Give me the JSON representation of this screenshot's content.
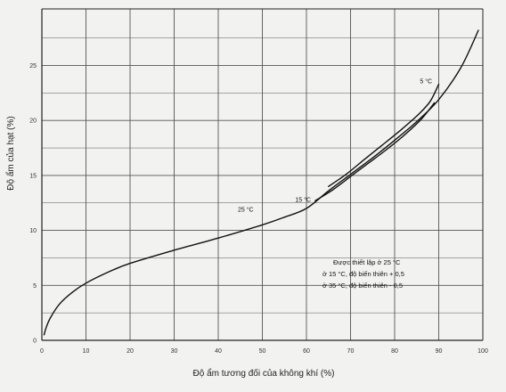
{
  "chart_data": {
    "type": "line",
    "xlabel": "Độ ẩm tương đối của không khí (%)",
    "ylabel": "Độ ẩm của hạt (%)",
    "xlim": [
      0,
      100
    ],
    "ylim": [
      0,
      28
    ],
    "x_ticks": [
      "0",
      "10",
      "20",
      "30",
      "40",
      "50",
      "60",
      "70",
      "80",
      "90",
      "100"
    ],
    "y_ticks": [
      "0",
      "5",
      "10",
      "15",
      "20",
      "25"
    ],
    "grid": true,
    "series": [
      {
        "name": "25 °C",
        "x": [
          0.5,
          1,
          2,
          4,
          7,
          10,
          15,
          20,
          30,
          40,
          50,
          55,
          60,
          65,
          70,
          75,
          80,
          85,
          90,
          95,
          99
        ],
        "y": [
          0.5,
          1.2,
          2.1,
          3.3,
          4.4,
          5.2,
          6.2,
          7.0,
          8.2,
          9.3,
          10.5,
          11.2,
          12.0,
          13.6,
          15.1,
          16.6,
          18.2,
          19.9,
          21.9,
          24.8,
          28.2
        ]
      },
      {
        "name": "15 °C",
        "x": [
          62,
          66,
          70,
          74,
          78,
          82,
          86,
          89
        ],
        "y": [
          12.7,
          13.7,
          14.9,
          16.1,
          17.3,
          18.6,
          20.1,
          21.6
        ]
      },
      {
        "name": "5 °C",
        "x": [
          65,
          69,
          73,
          77,
          81,
          85,
          88,
          90
        ],
        "y": [
          14.0,
          15.1,
          16.4,
          17.7,
          19.0,
          20.4,
          21.7,
          23.3
        ]
      }
    ],
    "annotations": [
      "Được thiết lập ở 25 °C",
      "ở 15 °C, độ biến thiên + 0,5",
      "ở 35 °C, độ biến thiên - 0,5"
    ],
    "colors": {
      "line": "#111111",
      "grid": "#555555",
      "background": "#f2f2f0"
    }
  }
}
